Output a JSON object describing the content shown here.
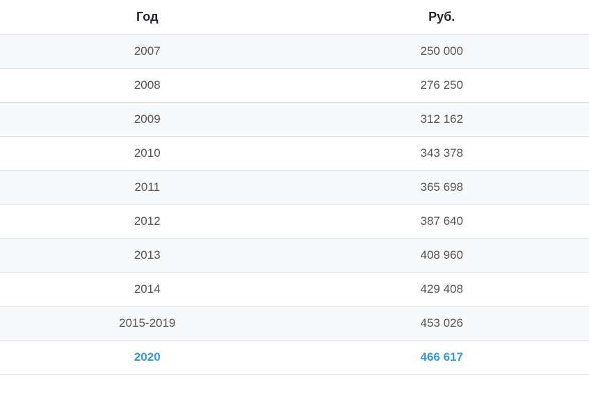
{
  "table": {
    "type": "table",
    "columns": [
      "Год",
      "Руб."
    ],
    "rows": [
      {
        "year": "2007",
        "rub": "250 000",
        "highlight": false
      },
      {
        "year": "2008",
        "rub": "276 250",
        "highlight": false
      },
      {
        "year": "2009",
        "rub": "312 162",
        "highlight": false
      },
      {
        "year": "2010",
        "rub": "343 378",
        "highlight": false
      },
      {
        "year": "2011",
        "rub": "365 698",
        "highlight": false
      },
      {
        "year": "2012",
        "rub": "387 640",
        "highlight": false
      },
      {
        "year": "2013",
        "rub": "408 960",
        "highlight": false
      },
      {
        "year": "2014",
        "rub": "429 408",
        "highlight": false
      },
      {
        "year": "2015-2019",
        "rub": "453 026",
        "highlight": false
      },
      {
        "year": "2020",
        "rub": "466 617",
        "highlight": true
      }
    ],
    "style": {
      "header_fontsize": 18,
      "header_fontweight": 700,
      "header_color": "#212529",
      "body_fontsize": 17,
      "body_color": "#555555",
      "highlight_color": "#3399dd",
      "highlight_fontweight": 700,
      "border_color": "#dee2e6",
      "stripe_odd_bg": "#f8f9fa",
      "stripe_even_bg": "#ffffff",
      "column_widths": [
        "50%",
        "50%"
      ],
      "text_align": "center",
      "cell_padding": "14px 10px"
    }
  }
}
